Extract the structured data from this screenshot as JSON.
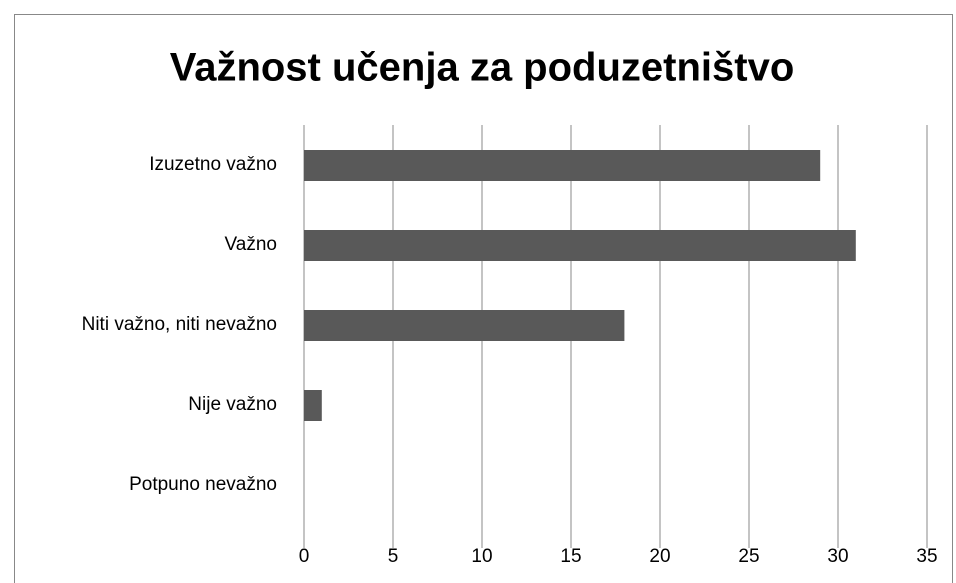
{
  "chart_data": {
    "type": "bar",
    "orientation": "horizontal",
    "title": "Važnost učenja za poduzetništvo",
    "categories": [
      "Izuzetno važno",
      "Važno",
      "Niti važno, niti nevažno",
      "Nije važno",
      "Potpuno nevažno"
    ],
    "values": [
      29,
      31,
      18,
      1,
      0
    ],
    "color": "#595959",
    "xlim": [
      0,
      35
    ],
    "xticks": [
      0,
      5,
      10,
      15,
      20,
      25,
      30,
      35
    ],
    "grid": true
  }
}
